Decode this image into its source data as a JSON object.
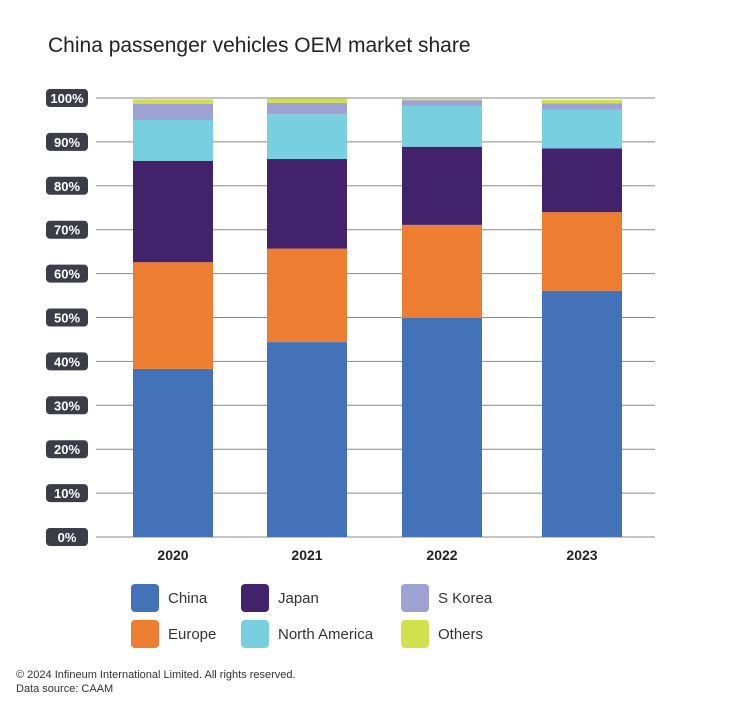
{
  "title": "China passenger vehicles OEM market share",
  "chart_data": {
    "type": "bar",
    "stacked": true,
    "title": "China passenger vehicles OEM market share",
    "xlabel": "",
    "ylabel": "",
    "categories": [
      "2020",
      "2021",
      "2022",
      "2023"
    ],
    "ylim": [
      0,
      100
    ],
    "yticks": [
      "0%",
      "10%",
      "20%",
      "30%",
      "40%",
      "50%",
      "60%",
      "70%",
      "80%",
      "90%",
      "100%"
    ],
    "grid": true,
    "legend_position": "bottom",
    "series": [
      {
        "name": "China",
        "color": "#4472b8",
        "values": [
          38.3,
          44.4,
          49.9,
          56.1
        ]
      },
      {
        "name": "Europe",
        "color": "#ed7d31",
        "values": [
          24.3,
          21.3,
          21.2,
          17.9
        ]
      },
      {
        "name": "Japan",
        "color": "#41226b",
        "values": [
          23.1,
          20.4,
          17.8,
          14.5
        ]
      },
      {
        "name": "North America",
        "color": "#78cfe0",
        "values": [
          9.3,
          10.2,
          9.3,
          8.8
        ]
      },
      {
        "name": "S Korea",
        "color": "#9ea2d2",
        "values": [
          3.7,
          2.6,
          1.3,
          1.5
        ]
      },
      {
        "name": "Others",
        "color": "#d3e04e",
        "values": [
          1.0,
          1.0,
          0.3,
          0.8
        ]
      }
    ]
  },
  "legend": [
    {
      "label": "China",
      "color": "#4472b8"
    },
    {
      "label": "Japan",
      "color": "#41226b"
    },
    {
      "label": "S Korea",
      "color": "#9ea2d2"
    },
    {
      "label": "Europe",
      "color": "#ed7d31"
    },
    {
      "label": "North America",
      "color": "#78cfe0"
    },
    {
      "label": "Others",
      "color": "#d3e04e"
    }
  ],
  "footer": {
    "copyright": "© 2024 Infineum International Limited. All rights reserved.",
    "source": "Data source: CAAM"
  }
}
